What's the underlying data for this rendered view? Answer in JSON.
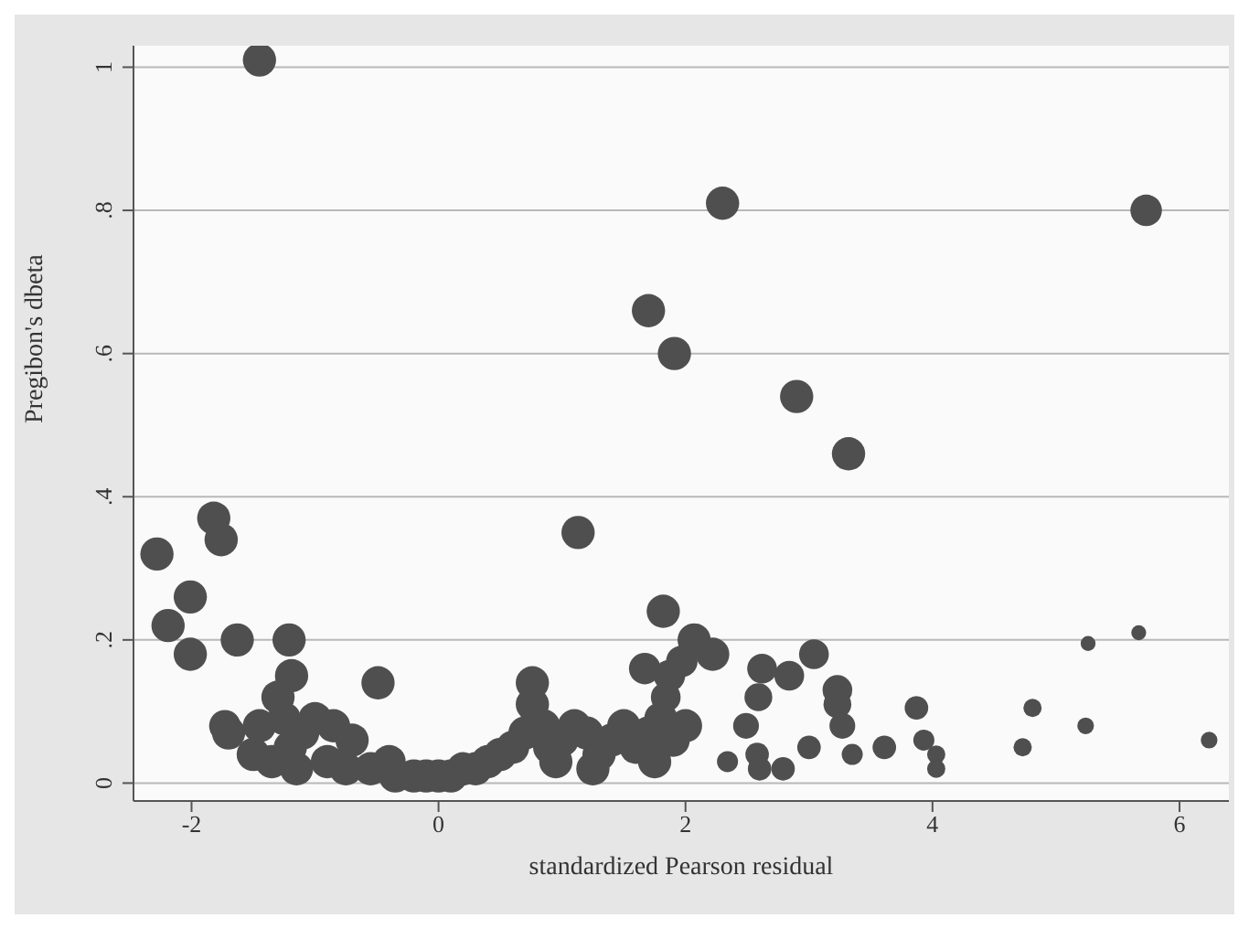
{
  "chart_data": {
    "type": "bubble",
    "xlabel": "standardized Pearson residual",
    "ylabel": "Pregibon's dbeta",
    "xlim": [
      -2.47,
      6.4
    ],
    "xticks": [
      -2,
      0,
      2,
      4,
      6
    ],
    "ylim": [
      -0.025,
      1.03
    ],
    "yticks": [
      0,
      {
        "value": 0.2,
        "label": ".2"
      },
      {
        "value": 0.4,
        "label": ".4"
      },
      {
        "value": 0.6,
        "label": ".6"
      },
      {
        "value": 0.8,
        "label": ".8"
      },
      1
    ],
    "grid": "y",
    "series": [
      {
        "color": "#4f4f4f",
        "x": [
          -1.45,
          2.3,
          5.73,
          1.7,
          1.91,
          2.9,
          3.32,
          1.13,
          -2.28,
          -1.82,
          -1.76,
          -2.01,
          -2.19,
          -2.01,
          -1.63,
          -1.21,
          -1.19,
          -1.3,
          -0.49,
          -1.73,
          1.82,
          2.07,
          2.22,
          1.67,
          1.87,
          1.97,
          2.62,
          3.04,
          2.84,
          3.23,
          3.23,
          2.59,
          2.49,
          1.84,
          3.27,
          3.0,
          2.34,
          2.58,
          2.6,
          2.79,
          3.35,
          3.61,
          3.87,
          3.93,
          4.03,
          4.03,
          4.73,
          4.81,
          5.26,
          5.67,
          5.24,
          6.24,
          -1.7,
          -1.5,
          -1.45,
          -1.35,
          -1.25,
          -1.2,
          -1.15,
          -1.1,
          -1.0,
          -0.9,
          -0.85,
          -0.75,
          -0.7,
          -0.55,
          -0.4,
          -0.35,
          -0.2,
          -0.1,
          0,
          0.1,
          0.2,
          0.3,
          0.4,
          0.5,
          0.6,
          0.7,
          0.76,
          0.76,
          0.85,
          0.9,
          0.95,
          1.0,
          1.1,
          1.2,
          1.3,
          1.4,
          1.5,
          1.6,
          1.7,
          1.8,
          1.9,
          2.0,
          1.75,
          1.25
        ],
        "values": [
          1.01,
          0.81,
          0.8,
          0.66,
          0.6,
          0.54,
          0.46,
          0.35,
          0.32,
          0.37,
          0.34,
          0.26,
          0.22,
          0.18,
          0.2,
          0.2,
          0.15,
          0.12,
          0.14,
          0.08,
          0.24,
          0.2,
          0.18,
          0.16,
          0.15,
          0.17,
          0.16,
          0.18,
          0.15,
          0.13,
          0.11,
          0.12,
          0.08,
          0.12,
          0.08,
          0.05,
          0.03,
          0.04,
          0.02,
          0.02,
          0.04,
          0.05,
          0.105,
          0.06,
          0.04,
          0.02,
          0.05,
          0.105,
          0.195,
          0.21,
          0.08,
          0.06,
          0.07,
          0.04,
          0.08,
          0.03,
          0.09,
          0.05,
          0.02,
          0.07,
          0.09,
          0.03,
          0.08,
          0.02,
          0.06,
          0.02,
          0.03,
          0.01,
          0.01,
          0.01,
          0.01,
          0.01,
          0.02,
          0.02,
          0.03,
          0.04,
          0.05,
          0.07,
          0.14,
          0.11,
          0.08,
          0.05,
          0.03,
          0.06,
          0.08,
          0.07,
          0.04,
          0.06,
          0.08,
          0.05,
          0.07,
          0.09,
          0.06,
          0.08,
          0.03,
          0.02
        ],
        "sizes": [
          1,
          1,
          0.9,
          1,
          1,
          1,
          1,
          1,
          1,
          1,
          1,
          1,
          1,
          1,
          1,
          1,
          1,
          1,
          1,
          0.9,
          1,
          1,
          1,
          0.9,
          0.9,
          0.9,
          0.8,
          0.8,
          0.8,
          0.8,
          0.7,
          0.7,
          0.6,
          0.8,
          0.6,
          0.5,
          0.4,
          0.5,
          0.5,
          0.5,
          0.4,
          0.5,
          0.5,
          0.4,
          0.3,
          0.3,
          0.3,
          0.3,
          0.2,
          0.2,
          0.25,
          0.25,
          1,
          1,
          1,
          1,
          1,
          1,
          1,
          1,
          1,
          1,
          1,
          1,
          1,
          1,
          1,
          1,
          1,
          1,
          1,
          1,
          1,
          1,
          1,
          1,
          1,
          1,
          1,
          1,
          1,
          1,
          1,
          1,
          1,
          1,
          1,
          1,
          1,
          1,
          1,
          1,
          1,
          1,
          1,
          1
        ]
      }
    ]
  }
}
